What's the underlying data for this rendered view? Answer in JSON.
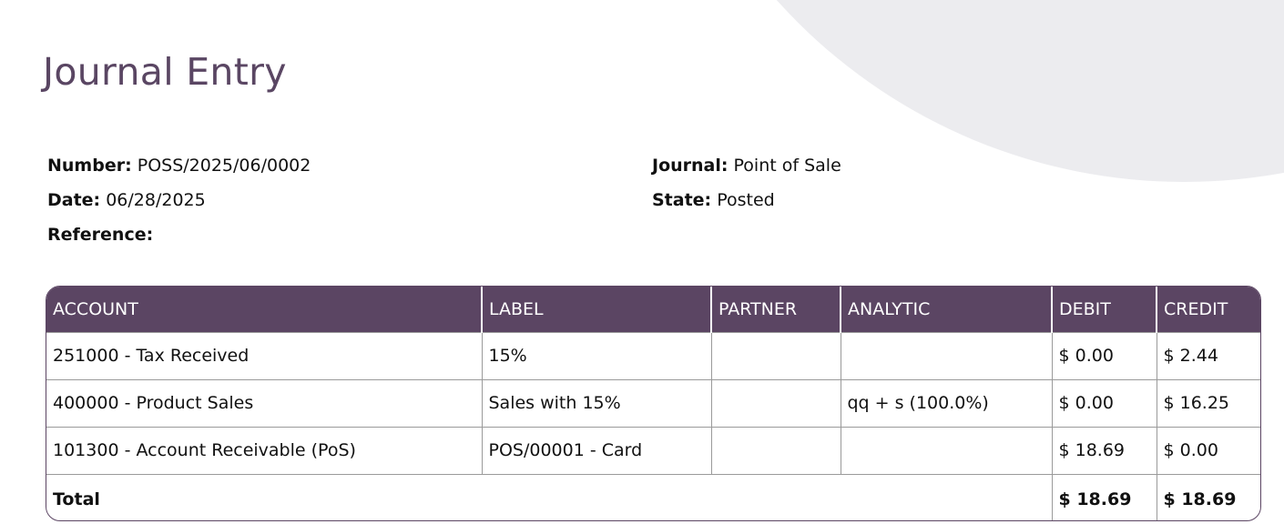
{
  "document": {
    "title": "Journal Entry",
    "number_label": "Number:",
    "number_value": "POSS/2025/06/0002",
    "date_label": "Date:",
    "date_value": "06/28/2025",
    "reference_label": "Reference:",
    "reference_value": "",
    "journal_label": "Journal:",
    "journal_value": "Point of Sale",
    "state_label": "State:",
    "state_value": "Posted"
  },
  "table": {
    "headers": {
      "account": "ACCOUNT",
      "label": "LABEL",
      "partner": "PARTNER",
      "analytic": "ANALYTIC",
      "debit": "DEBIT",
      "credit": "CREDIT"
    },
    "rows": [
      {
        "account": "251000 - Tax Received",
        "label": "15%",
        "partner": "",
        "analytic": "",
        "debit": "$ 0.00",
        "credit": "$ 2.44"
      },
      {
        "account": "400000 - Product Sales",
        "label": "Sales with 15%",
        "partner": "",
        "analytic": "qq + s (100.0%)",
        "debit": "$ 0.00",
        "credit": "$ 16.25"
      },
      {
        "account": "101300 - Account Receivable (PoS)",
        "label": "POS/00001 - Card",
        "partner": "",
        "analytic": "",
        "debit": "$ 18.69",
        "credit": "$ 0.00"
      }
    ],
    "total": {
      "label": "Total",
      "debit": "$ 18.69",
      "credit": "$ 18.69"
    }
  },
  "colors": {
    "header_bg": "#5b4563",
    "title": "#5a4663",
    "background_shape": "#ececef"
  }
}
